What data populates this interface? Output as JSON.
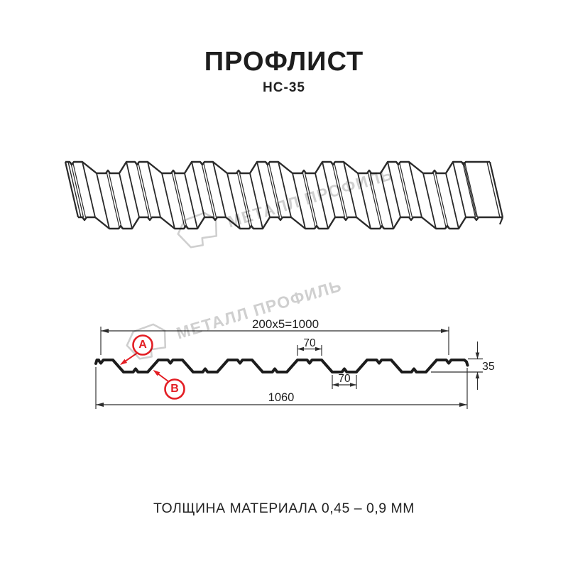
{
  "header": {
    "title": "ПРОФЛИСТ",
    "subtitle": "НС-35"
  },
  "watermark": {
    "text": "МЕТАЛЛ ПРОФИЛЬ",
    "color": "#cfcfcf"
  },
  "section_drawing": {
    "dimensions": {
      "pitch_formula": "200x5=1000",
      "crest_top_width": "70",
      "valley_width": "70",
      "profile_height": "35",
      "overall_width": "1060"
    },
    "markers": {
      "label_a": "А",
      "label_b": "В"
    },
    "colors": {
      "profile_line": "#1c1c1c",
      "dim_line": "#2d2d2d",
      "accent_red": "#e31e24",
      "sheet_outline": "#2a2a2a"
    }
  },
  "footer": {
    "text": "ТОЛЩИНА МАТЕРИАЛА 0,45 – 0,9 ММ"
  }
}
